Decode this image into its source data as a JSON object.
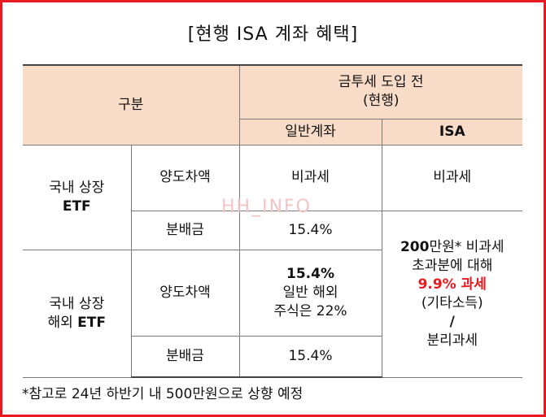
{
  "title": "[현행 ISA 계좌 혜택]",
  "header": {
    "category": "구분",
    "group_line1": "금투세 도입 전",
    "group_line2": "(현행)",
    "col_general": "일반계좌",
    "col_isa": "ISA"
  },
  "rows": {
    "domestic_etf": {
      "label_line1": "국내 상장",
      "label_line2": "ETF",
      "capital_gains": {
        "label": "양도차액",
        "general": "비과세",
        "isa": "비과세"
      },
      "dividends": {
        "label": "분배금",
        "general": "15.4%"
      }
    },
    "foreign_etf": {
      "label_line1": "국내 상장",
      "label_line2_prefix": "해외 ",
      "label_line2_bold": "ETF",
      "capital_gains": {
        "label": "양도차액",
        "general_rate": "15.4%",
        "general_note1": "일반 해외",
        "general_note2": "주식은 22%"
      },
      "dividends": {
        "label": "분배금",
        "general": "15.4%"
      }
    },
    "isa_dividend_and_foreign": {
      "line1_bold": "200",
      "line1_rest": "만원* 비과세",
      "line2": "초과분에 대해",
      "line3_rate": "9.9%",
      "line3_rest": " 과세",
      "line4": "(기타소득)",
      "line5": "/",
      "line6": "분리과세"
    }
  },
  "watermark": "HH_INFO",
  "footnote": "*참고로 24년 하반기 내 500만원으로 상향 예정",
  "colors": {
    "border": "#e8191f",
    "header_bg": "#f9dcc8",
    "highlight": "#e8191f"
  }
}
